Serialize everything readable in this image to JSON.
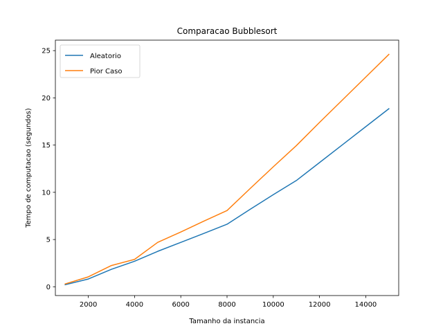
{
  "chart_data": {
    "type": "line",
    "title": "Comparacao Bubblesort",
    "xlabel": "Tamanho da instancia",
    "ylabel": "Tempo de computacao (segundos)",
    "xlim": [
      575,
      15425
    ],
    "ylim": [
      -0.93,
      26.11
    ],
    "xticks": [
      2000,
      4000,
      6000,
      8000,
      10000,
      12000,
      14000
    ],
    "yticks": [
      0,
      5,
      10,
      15,
      20,
      25
    ],
    "grid": false,
    "legend_position": "upper left",
    "series": [
      {
        "name": "Aleatorio",
        "color": "#1f77b4",
        "x": [
          1000,
          2000,
          3000,
          4000,
          5000,
          6000,
          7000,
          8000,
          9000,
          10000,
          11000,
          12000,
          13000,
          14000,
          15000
        ],
        "y": [
          0.22,
          0.82,
          1.85,
          2.7,
          3.75,
          4.7,
          5.65,
          6.62,
          8.2,
          9.75,
          11.25,
          13.15,
          15.05,
          16.95,
          18.85
        ]
      },
      {
        "name": "Pior Caso",
        "color": "#ff7f0e",
        "x": [
          1000,
          2000,
          3000,
          4000,
          5000,
          6000,
          7000,
          8000,
          9000,
          10000,
          11000,
          12000,
          13000,
          14000,
          15000
        ],
        "y": [
          0.3,
          1.05,
          2.25,
          2.9,
          4.7,
          5.8,
          6.95,
          8.07,
          10.4,
          12.7,
          14.95,
          17.4,
          19.8,
          22.2,
          24.6
        ]
      }
    ]
  }
}
